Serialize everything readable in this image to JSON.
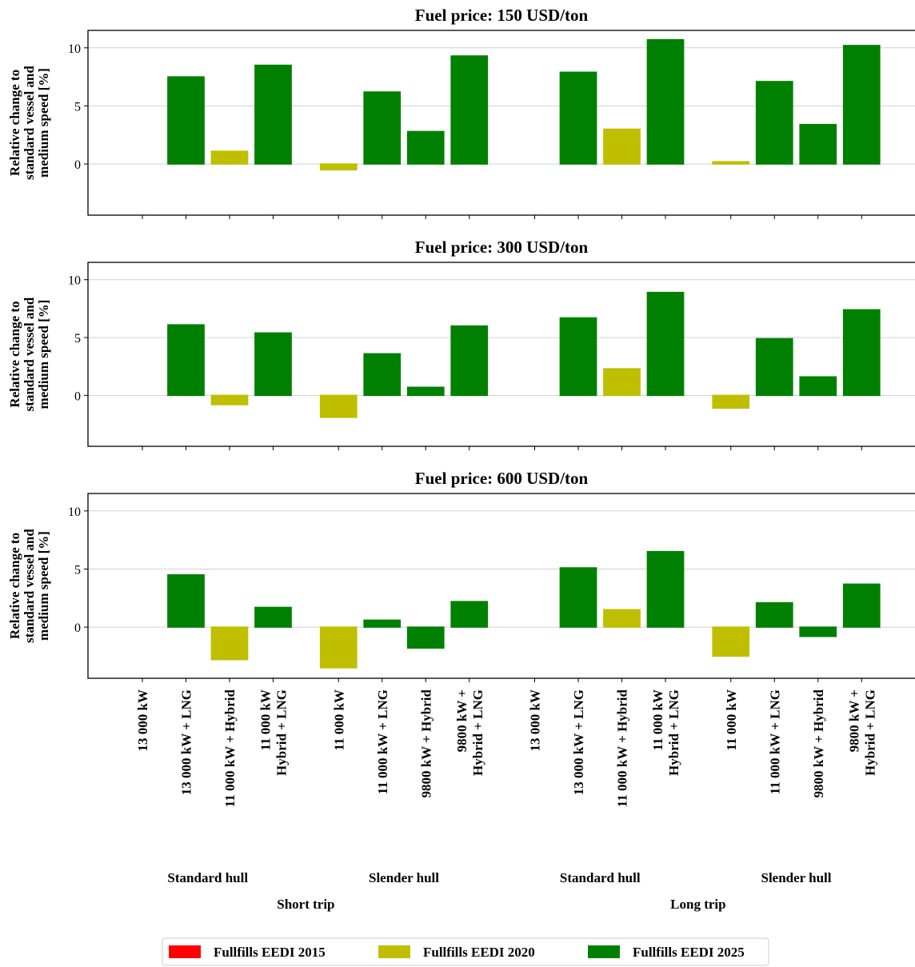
{
  "chart_data": {
    "type": "bar",
    "ylabel": [
      "Relative change to",
      "standard vessel and",
      "medium speed [%]"
    ],
    "categories": [
      [
        "13 000 kW"
      ],
      [
        "13 000 kW + LNG"
      ],
      [
        "11 000 kW + Hybrid"
      ],
      [
        "11 000 kW",
        "Hybrid + LNG"
      ],
      [
        "11 000 kW"
      ],
      [
        "11 000 kW + LNG"
      ],
      [
        "9800 kW + Hybrid"
      ],
      [
        "9800 kW +",
        "Hybrid + LNG"
      ],
      [
        "13 000 kW"
      ],
      [
        "13 000 kW + LNG"
      ],
      [
        "11 000 kW + Hybrid"
      ],
      [
        "11 000 kW",
        "Hybrid + LNG"
      ],
      [
        "11 000 kW"
      ],
      [
        "11 000 kW + LNG"
      ],
      [
        "9800 kW + Hybrid"
      ],
      [
        "9800 kW +",
        "Hybrid + LNG"
      ]
    ],
    "groups": [
      "Standard hull",
      "Slender hull",
      "Standard hull",
      "Slender hull"
    ],
    "supergroups": [
      "Short trip",
      "Long trip"
    ],
    "series": [
      {
        "name": "Fullfills EEDI 2015",
        "color": "#ff0000"
      },
      {
        "name": "Fullfills EEDI 2020",
        "color": "#bfbf00"
      },
      {
        "name": "Fullfills EEDI 2025",
        "color": "#008000"
      }
    ],
    "category_series": [
      0,
      2,
      1,
      2,
      1,
      2,
      2,
      2,
      0,
      2,
      1,
      2,
      1,
      2,
      2,
      2
    ],
    "ylim": [
      -4.4,
      11.5
    ],
    "yticks": [
      0,
      5,
      10
    ],
    "grid": true,
    "legend": "lower center",
    "panels": [
      {
        "title": "Fuel price: 150 USD/ton",
        "values": [
          0,
          7.5,
          1.1,
          8.5,
          -0.5,
          6.2,
          2.8,
          9.3,
          0,
          7.9,
          3.0,
          10.7,
          0.2,
          7.1,
          3.4,
          10.2
        ]
      },
      {
        "title": "Fuel price: 300 USD/ton",
        "values": [
          0,
          6.1,
          -0.8,
          5.4,
          -1.9,
          3.6,
          0.7,
          6.0,
          0,
          6.7,
          2.3,
          8.9,
          -1.1,
          4.9,
          1.6,
          7.4
        ]
      },
      {
        "title": "Fuel price: 600 USD/ton",
        "values": [
          0,
          4.5,
          -2.8,
          1.7,
          -3.5,
          0.6,
          -1.8,
          2.2,
          0,
          5.1,
          1.5,
          6.5,
          -2.5,
          2.1,
          -0.8,
          3.7
        ]
      }
    ]
  }
}
